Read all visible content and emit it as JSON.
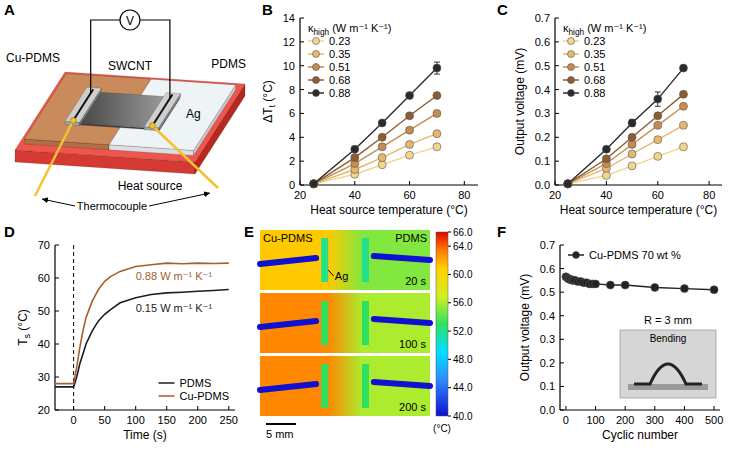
{
  "diagram": {
    "label": "A",
    "voltmeter": "V",
    "layers": [
      "Cu-PDMS",
      "PDMS"
    ],
    "film": "SWCNT",
    "electrode": "Ag",
    "base": "Heat source",
    "sensor": "Thermocouple"
  },
  "chart_data": [
    {
      "label": "B",
      "type": "line",
      "x_label": "Heat source temperature (°C)",
      "y_label": {
        "text": "ΔT",
        "sub": "t",
        "after": " (°C)"
      },
      "legend_title": {
        "text": "κ",
        "sub": "high",
        "after": " (W m⁻¹ K⁻¹)"
      },
      "legend": "upper left",
      "marker": "circle",
      "line_style": "solid",
      "grid": false,
      "x": [
        25,
        40,
        50,
        60,
        70
      ],
      "xlim": [
        20,
        85
      ],
      "xticks": [
        20,
        40,
        60,
        80
      ],
      "ylim": [
        0,
        14
      ],
      "yticks": [
        0,
        2,
        4,
        6,
        8,
        10,
        12,
        14
      ],
      "series": [
        {
          "name": "0.23",
          "color": "#f3d58e",
          "values": [
            0.1,
            0.9,
            1.7,
            2.5,
            3.2
          ]
        },
        {
          "name": "0.35",
          "color": "#e3b86c",
          "values": [
            0.1,
            1.3,
            2.3,
            3.4,
            4.3
          ]
        },
        {
          "name": "0.51",
          "color": "#c48d4f",
          "values": [
            0.1,
            1.8,
            3.2,
            4.6,
            6.0
          ]
        },
        {
          "name": "0.68",
          "color": "#8e5c31",
          "values": [
            0.1,
            2.3,
            4.0,
            5.8,
            7.5
          ]
        },
        {
          "name": "0.88",
          "color": "#2a2a2a",
          "values": [
            0.1,
            3.0,
            5.2,
            7.5,
            9.8
          ],
          "errors": [
            null,
            null,
            null,
            null,
            0.5
          ]
        }
      ]
    },
    {
      "label": "C",
      "type": "line",
      "x_label": "Heat source temperature (°C)",
      "y_label": "Output voltage (mV)",
      "legend_title": {
        "text": "κ",
        "sub": "high",
        "after": " (W m⁻¹ K⁻¹)"
      },
      "legend": "upper left",
      "marker": "circle",
      "line_style": "solid",
      "grid": false,
      "x": [
        25,
        40,
        50,
        60,
        70
      ],
      "xlim": [
        20,
        85
      ],
      "xticks": [
        20,
        40,
        60,
        80
      ],
      "ylim": [
        0,
        0.7
      ],
      "yticks": [
        {
          "value": 0,
          "label": "0.0"
        },
        0.1,
        0.2,
        0.3,
        0.4,
        0.5,
        0.6,
        0.7
      ],
      "series": [
        {
          "name": "0.23",
          "color": "#f3d58e",
          "values": [
            0.005,
            0.04,
            0.08,
            0.12,
            0.16
          ]
        },
        {
          "name": "0.35",
          "color": "#e3b86c",
          "values": [
            0.005,
            0.07,
            0.13,
            0.19,
            0.25
          ]
        },
        {
          "name": "0.51",
          "color": "#c48d4f",
          "values": [
            0.005,
            0.09,
            0.17,
            0.25,
            0.33
          ]
        },
        {
          "name": "0.68",
          "color": "#8e5c31",
          "values": [
            0.005,
            0.11,
            0.2,
            0.29,
            0.38
          ]
        },
        {
          "name": "0.88",
          "color": "#2a2a2a",
          "values": [
            0.005,
            0.15,
            0.26,
            0.36,
            0.49
          ],
          "errors": [
            null,
            null,
            0.015,
            0.03,
            null
          ]
        }
      ]
    },
    {
      "label": "D",
      "type": "line",
      "x_label": "Time (s)",
      "y_label": {
        "text": "T",
        "sub": "s",
        "after": " (°C)"
      },
      "legend": "lower right",
      "marker": "none",
      "line_style": "solid",
      "grid": false,
      "vline": 0,
      "x": [
        -30,
        -15,
        0,
        5,
        10,
        15,
        20,
        30,
        40,
        50,
        60,
        75,
        100,
        125,
        150,
        175,
        200,
        225,
        250
      ],
      "xlim": [
        -30,
        260
      ],
      "xticks": [
        0,
        50,
        100,
        150,
        200,
        250
      ],
      "ylim": [
        20,
        70
      ],
      "yticks": [
        20,
        30,
        40,
        50,
        60,
        70
      ],
      "series": [
        {
          "name": "PDMS",
          "color": "#1c1c2a",
          "values": [
            27,
            27,
            27,
            30,
            34,
            37,
            40,
            44,
            47,
            49,
            50.5,
            52.5,
            54,
            55,
            55.5,
            55.7,
            56,
            56.2,
            56.5
          ]
        },
        {
          "name": "Cu-PDMS",
          "color": "#a4612d",
          "values": [
            28,
            28,
            28,
            33,
            39,
            44,
            48,
            53,
            56.5,
            59,
            60.5,
            62,
            63.5,
            64,
            64.5,
            64.3,
            64.5,
            64.4,
            64.5
          ]
        }
      ],
      "annotations": [
        "0.15 W m⁻¹ K⁻¹",
        "0.88 W m⁻¹ K⁻¹"
      ]
    },
    {
      "label": "F",
      "type": "line",
      "x_label": "Cyclic number",
      "y_label": "Output voltage (mV)",
      "legend": "upper left",
      "marker": "circle",
      "line_style": "solid",
      "grid": false,
      "x": [
        0,
        5,
        10,
        15,
        20,
        25,
        30,
        40,
        50,
        60,
        70,
        80,
        90,
        100,
        150,
        200,
        300,
        400,
        500
      ],
      "xlim": [
        -20,
        520
      ],
      "xticks": [
        0,
        100,
        200,
        300,
        400,
        500
      ],
      "ylim": [
        0,
        0.7
      ],
      "yticks": [
        {
          "value": 0,
          "label": "0.0"
        },
        0.1,
        0.2,
        0.3,
        0.4,
        0.5,
        0.6,
        0.7
      ],
      "series": [
        {
          "name": "Cu-PDMS 70 wt %",
          "color": "#222222",
          "values": [
            0.565,
            0.56,
            0.555,
            0.555,
            0.55,
            0.55,
            0.55,
            0.545,
            0.545,
            0.54,
            0.54,
            0.535,
            0.535,
            0.535,
            0.53,
            0.53,
            0.52,
            0.515,
            0.51
          ]
        }
      ],
      "inset_labels": [
        "R = 3 mm",
        "Bending"
      ]
    }
  ],
  "thermal_image": {
    "label": "E",
    "left_material": "Cu-PDMS",
    "right_material": "PDMS",
    "electrode": "Ag",
    "scale_bar": "5 mm",
    "frames": [
      {
        "time": "20 s",
        "left": 61,
        "right": 55,
        "ag": 52
      },
      {
        "time": "100 s",
        "left": 63,
        "right": 56,
        "ag": 53
      },
      {
        "time": "200 s",
        "left": 63,
        "right": 56,
        "ag": 53
      }
    ],
    "colorbar": {
      "range": [
        40,
        66
      ],
      "unit": "(°C)",
      "ticks": [
        {
          "value": 40,
          "label": "40.0"
        },
        {
          "value": 44,
          "label": "44.0"
        },
        {
          "value": 48,
          "label": "48.0"
        },
        {
          "value": 52,
          "label": "52.0"
        },
        {
          "value": 56,
          "label": "56.0"
        },
        {
          "value": 60,
          "label": "60.0"
        },
        {
          "value": 64,
          "label": "64.0"
        },
        {
          "value": 66,
          "label": "66.0"
        }
      ]
    }
  }
}
